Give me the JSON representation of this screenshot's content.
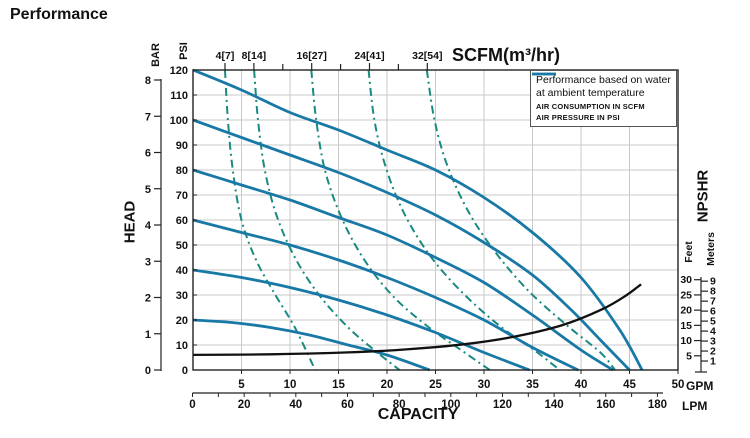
{
  "chart_data": {
    "type": "line",
    "title": "Performance",
    "top_axis": {
      "title": "SCFM(m³/hr)",
      "major_ticks": [
        {
          "scfm": 4,
          "label": "4[7]"
        },
        {
          "scfm": 8,
          "label": "8[14]"
        },
        {
          "scfm": 16,
          "label": "16[27]"
        },
        {
          "scfm": 24,
          "label": "24[41]"
        },
        {
          "scfm": 32,
          "label": "32[54]"
        }
      ],
      "minor_ticks_scfm": [
        12,
        20,
        28
      ]
    },
    "y_axis": {
      "title": "HEAD",
      "psi": {
        "label": "PSI",
        "min": 0,
        "max": 120,
        "step": 10
      },
      "bar": {
        "label": "BAR",
        "min": 0,
        "max": 8,
        "step": 1
      }
    },
    "x_axis": {
      "title": "CAPACITY",
      "gpm": {
        "label": "GPM",
        "min": 0,
        "max": 50,
        "step": 5
      },
      "lpm": {
        "label": "LPM",
        "min": 0,
        "max": 180,
        "step": 20
      }
    },
    "right_axis": {
      "title": "NPSHR",
      "feet": {
        "label": "Feet",
        "ticks": [
          5,
          10,
          15,
          20,
          25,
          30
        ]
      },
      "meters": {
        "label": "Meters",
        "ticks": [
          1,
          2,
          3,
          4,
          5,
          6,
          7,
          8,
          9
        ]
      }
    },
    "legend": {
      "line1": "Performance based on water",
      "line2": "at ambient temperature",
      "items": [
        {
          "style": "dashed",
          "label": "AIR CONSUMPTION IN SCFM"
        },
        {
          "style": "solid",
          "label": "AIR PRESSURE IN PSI"
        }
      ]
    },
    "colors": {
      "pressure": "#1878a6",
      "consumption": "#188a82",
      "npshr": "#111111",
      "grid": "#c9c9c9",
      "axis": "#222222"
    },
    "air_pressure_curves": [
      {
        "psi": 120,
        "points_gpm_psi": [
          [
            0,
            120
          ],
          [
            5,
            112
          ],
          [
            10,
            103
          ],
          [
            15,
            96
          ],
          [
            20,
            88
          ],
          [
            25,
            80
          ],
          [
            30,
            69
          ],
          [
            35,
            55
          ],
          [
            40,
            37
          ],
          [
            44,
            16
          ],
          [
            46.3,
            0
          ]
        ]
      },
      {
        "psi": 100,
        "points_gpm_psi": [
          [
            0,
            100
          ],
          [
            5,
            93
          ],
          [
            10,
            86
          ],
          [
            15,
            79
          ],
          [
            20,
            71
          ],
          [
            25,
            62
          ],
          [
            30,
            51
          ],
          [
            35,
            38
          ],
          [
            39,
            24
          ],
          [
            42,
            12
          ],
          [
            45,
            0
          ]
        ]
      },
      {
        "psi": 80,
        "points_gpm_psi": [
          [
            0,
            80
          ],
          [
            5,
            74
          ],
          [
            10,
            68
          ],
          [
            15,
            61
          ],
          [
            20,
            54
          ],
          [
            25,
            45
          ],
          [
            30,
            35
          ],
          [
            35,
            22
          ],
          [
            40,
            8
          ],
          [
            43.3,
            0
          ]
        ]
      },
      {
        "psi": 60,
        "points_gpm_psi": [
          [
            0,
            60
          ],
          [
            5,
            55
          ],
          [
            10,
            50
          ],
          [
            15,
            44
          ],
          [
            20,
            37
          ],
          [
            25,
            29
          ],
          [
            30,
            20
          ],
          [
            35,
            9
          ],
          [
            39.7,
            0
          ]
        ]
      },
      {
        "psi": 40,
        "points_gpm_psi": [
          [
            0,
            40
          ],
          [
            5,
            37
          ],
          [
            10,
            33
          ],
          [
            15,
            28
          ],
          [
            20,
            22
          ],
          [
            25,
            15
          ],
          [
            30,
            7
          ],
          [
            34.7,
            0
          ]
        ]
      },
      {
        "psi": 20,
        "points_gpm_psi": [
          [
            0,
            20
          ],
          [
            4,
            19
          ],
          [
            8,
            17
          ],
          [
            12,
            14
          ],
          [
            16,
            10
          ],
          [
            20,
            6
          ],
          [
            24.4,
            0
          ]
        ]
      }
    ],
    "air_consumption_curves": [
      {
        "scfm": 4,
        "points_gpm_psi": [
          [
            3.3,
            120
          ],
          [
            3.6,
            100
          ],
          [
            4.1,
            80
          ],
          [
            5,
            60
          ],
          [
            6.5,
            44
          ],
          [
            8.5,
            30
          ],
          [
            10.5,
            17
          ],
          [
            12.6,
            0
          ]
        ]
      },
      {
        "scfm": 8,
        "points_gpm_psi": [
          [
            6.3,
            120
          ],
          [
            6.7,
            100
          ],
          [
            7.4,
            80
          ],
          [
            8.6,
            62
          ],
          [
            10.5,
            45
          ],
          [
            13,
            30
          ],
          [
            16,
            17
          ],
          [
            19,
            7
          ],
          [
            21.3,
            0
          ]
        ]
      },
      {
        "scfm": 16,
        "points_gpm_psi": [
          [
            12.2,
            120
          ],
          [
            12.7,
            100
          ],
          [
            13.6,
            80
          ],
          [
            15.2,
            62
          ],
          [
            17.5,
            45
          ],
          [
            20.5,
            30
          ],
          [
            24,
            18
          ],
          [
            28,
            7
          ],
          [
            30.6,
            0
          ]
        ]
      },
      {
        "scfm": 24,
        "points_gpm_psi": [
          [
            18.1,
            120
          ],
          [
            18.7,
            100
          ],
          [
            19.8,
            82
          ],
          [
            21.6,
            64
          ],
          [
            24.2,
            47
          ],
          [
            27.5,
            32
          ],
          [
            31.5,
            18
          ],
          [
            35.5,
            7
          ],
          [
            37.8,
            0
          ]
        ]
      },
      {
        "scfm": 32,
        "points_gpm_psi": [
          [
            24.1,
            120
          ],
          [
            24.9,
            100
          ],
          [
            26.2,
            82
          ],
          [
            28.3,
            64
          ],
          [
            31,
            48
          ],
          [
            34.5,
            32
          ],
          [
            38.5,
            18
          ],
          [
            42,
            7
          ],
          [
            43.5,
            0
          ]
        ]
      }
    ],
    "npshr_curve_gpm_feet": [
      [
        0,
        5.3
      ],
      [
        8,
        5.5
      ],
      [
        16,
        6.1
      ],
      [
        22,
        7.1
      ],
      [
        28,
        8.8
      ],
      [
        33,
        11.2
      ],
      [
        38,
        15
      ],
      [
        42,
        20
      ],
      [
        44.5,
        24.5
      ],
      [
        46.2,
        28.5
      ]
    ]
  }
}
